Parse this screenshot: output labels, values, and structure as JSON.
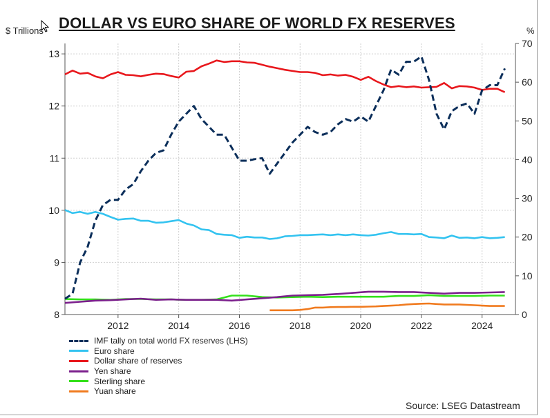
{
  "title": "DOLLAR VS EURO SHARE OF WORLD FX RESERVES",
  "source": "Source: LSEG Datastream",
  "colors": {
    "imf": "#0b2e5a",
    "euro": "#33c3f0",
    "dollar": "#e8171c",
    "yen": "#7b1f8c",
    "sterling": "#33e01a",
    "yuan": "#f07a1e",
    "grid": "#cfcfcf"
  },
  "chart_data": {
    "type": "line",
    "title": "DOLLAR VS EURO SHARE OF WORLD FX RESERVES",
    "x_ticks": [
      2012,
      2014,
      2016,
      2018,
      2020,
      2022,
      2024
    ],
    "xlim": [
      2010.25,
      2025.1
    ],
    "left_axis": {
      "unit": "$ Trillions",
      "ylim": [
        8,
        13.2
      ],
      "ticks": [
        8,
        9,
        10,
        11,
        12,
        13
      ]
    },
    "right_axis": {
      "unit": "%",
      "ylim": [
        0,
        70
      ],
      "ticks": [
        0,
        10,
        20,
        30,
        40,
        50,
        60,
        70
      ]
    },
    "grid": true,
    "legend_position": "bottom-left",
    "series": [
      {
        "key": "imf",
        "name": "IMF tally on total world FX reserves (LHS)",
        "axis": "left",
        "style": "dashed",
        "x": [
          2010.25,
          2010.5,
          2010.75,
          2011.0,
          2011.25,
          2011.5,
          2011.75,
          2012.0,
          2012.25,
          2012.5,
          2012.75,
          2013.0,
          2013.25,
          2013.5,
          2013.75,
          2014.0,
          2014.25,
          2014.5,
          2014.75,
          2015.0,
          2015.25,
          2015.5,
          2015.75,
          2016.0,
          2016.25,
          2016.5,
          2016.75,
          2017.0,
          2017.25,
          2017.5,
          2017.75,
          2018.0,
          2018.25,
          2018.5,
          2018.75,
          2019.0,
          2019.25,
          2019.5,
          2019.75,
          2020.0,
          2020.25,
          2020.5,
          2020.75,
          2021.0,
          2021.25,
          2021.5,
          2021.75,
          2022.0,
          2022.25,
          2022.5,
          2022.75,
          2023.0,
          2023.25,
          2023.5,
          2023.75,
          2024.0,
          2024.25,
          2024.5,
          2024.75
        ],
        "y": [
          8.3,
          8.4,
          9.0,
          9.3,
          9.8,
          10.1,
          10.2,
          10.2,
          10.4,
          10.5,
          10.75,
          10.95,
          11.1,
          11.15,
          11.45,
          11.7,
          11.85,
          12.0,
          11.75,
          11.6,
          11.45,
          11.45,
          11.2,
          10.95,
          10.95,
          10.98,
          11.0,
          10.7,
          10.9,
          11.1,
          11.3,
          11.45,
          11.6,
          11.5,
          11.45,
          11.5,
          11.65,
          11.75,
          11.7,
          11.8,
          11.7,
          12.0,
          12.3,
          12.7,
          12.6,
          12.85,
          12.85,
          12.95,
          12.5,
          11.85,
          11.55,
          11.9,
          12.0,
          12.05,
          11.85,
          12.3,
          12.4,
          12.4,
          12.72
        ]
      },
      {
        "key": "euro",
        "name": "Euro share",
        "axis": "right",
        "style": "solid",
        "x": [
          2010.25,
          2010.5,
          2010.75,
          2011.0,
          2011.25,
          2011.5,
          2011.75,
          2012.0,
          2012.25,
          2012.5,
          2012.75,
          2013.0,
          2013.25,
          2013.5,
          2013.75,
          2014.0,
          2014.25,
          2014.5,
          2014.75,
          2015.0,
          2015.25,
          2015.5,
          2015.75,
          2016.0,
          2016.25,
          2016.5,
          2016.75,
          2017.0,
          2017.25,
          2017.5,
          2017.75,
          2018.0,
          2018.25,
          2018.5,
          2018.75,
          2019.0,
          2019.25,
          2019.5,
          2019.75,
          2020.0,
          2020.25,
          2020.5,
          2020.75,
          2021.0,
          2021.25,
          2021.5,
          2021.75,
          2022.0,
          2022.25,
          2022.5,
          2022.75,
          2023.0,
          2023.25,
          2023.5,
          2023.75,
          2024.0,
          2024.25,
          2024.5,
          2024.75
        ],
        "y": [
          27.0,
          26.2,
          26.5,
          26.0,
          26.5,
          26.0,
          25.2,
          24.5,
          24.7,
          24.8,
          24.2,
          24.2,
          23.7,
          23.8,
          24.1,
          24.4,
          23.5,
          23.0,
          22.0,
          21.8,
          20.8,
          20.6,
          20.5,
          19.8,
          20.1,
          19.9,
          19.9,
          19.5,
          19.7,
          20.2,
          20.3,
          20.5,
          20.5,
          20.6,
          20.7,
          20.5,
          20.7,
          20.5,
          20.7,
          20.5,
          20.4,
          20.6,
          21.0,
          21.3,
          20.8,
          20.8,
          20.7,
          20.8,
          20.0,
          19.9,
          19.7,
          20.4,
          19.8,
          19.9,
          19.7,
          20.0,
          19.7,
          19.8,
          20.0
        ]
      },
      {
        "key": "dollar",
        "name": "Dollar share of reserves",
        "axis": "right",
        "style": "solid",
        "x": [
          2010.25,
          2010.5,
          2010.75,
          2011.0,
          2011.25,
          2011.5,
          2011.75,
          2012.0,
          2012.25,
          2012.5,
          2012.75,
          2013.0,
          2013.25,
          2013.5,
          2013.75,
          2014.0,
          2014.25,
          2014.5,
          2014.75,
          2015.0,
          2015.25,
          2015.5,
          2015.75,
          2016.0,
          2016.25,
          2016.5,
          2016.75,
          2017.0,
          2017.25,
          2017.5,
          2017.75,
          2018.0,
          2018.25,
          2018.5,
          2018.75,
          2019.0,
          2019.25,
          2019.5,
          2019.75,
          2020.0,
          2020.25,
          2020.5,
          2020.75,
          2021.0,
          2021.25,
          2021.5,
          2021.75,
          2022.0,
          2022.25,
          2022.5,
          2022.75,
          2023.0,
          2023.25,
          2023.5,
          2023.75,
          2024.0,
          2024.25,
          2024.5,
          2024.75
        ],
        "y": [
          62.0,
          63.0,
          62.2,
          62.4,
          61.5,
          61.0,
          62.0,
          62.6,
          61.9,
          61.8,
          61.5,
          61.9,
          62.2,
          62.1,
          61.6,
          61.2,
          62.7,
          62.9,
          64.1,
          64.8,
          65.6,
          65.2,
          65.4,
          65.4,
          65.1,
          65.0,
          64.5,
          64.0,
          63.6,
          63.2,
          62.9,
          62.6,
          62.6,
          62.4,
          61.8,
          62.0,
          61.7,
          61.9,
          61.4,
          60.6,
          61.4,
          60.3,
          59.4,
          58.7,
          59.0,
          58.7,
          58.9,
          58.6,
          58.7,
          58.8,
          59.8,
          58.4,
          59.0,
          58.9,
          58.6,
          58.0,
          58.3,
          58.3,
          57.4
        ]
      },
      {
        "key": "yen",
        "name": "Yen share",
        "axis": "right",
        "style": "solid",
        "x": [
          2010.25,
          2010.75,
          2011.25,
          2011.75,
          2012.25,
          2012.75,
          2013.25,
          2013.75,
          2014.25,
          2014.75,
          2015.25,
          2015.75,
          2016.25,
          2016.75,
          2017.25,
          2017.75,
          2018.25,
          2018.75,
          2019.25,
          2019.75,
          2020.25,
          2020.75,
          2021.25,
          2021.75,
          2022.25,
          2022.75,
          2023.25,
          2023.75,
          2024.25,
          2024.75
        ],
        "y": [
          3.0,
          3.3,
          3.6,
          3.7,
          3.9,
          4.1,
          3.8,
          3.9,
          3.8,
          3.8,
          3.8,
          3.6,
          3.9,
          4.2,
          4.5,
          4.9,
          5.0,
          5.1,
          5.3,
          5.6,
          5.9,
          5.9,
          5.8,
          5.8,
          5.6,
          5.4,
          5.6,
          5.6,
          5.7,
          5.8
        ]
      },
      {
        "key": "sterling",
        "name": "Sterling share",
        "axis": "right",
        "style": "solid",
        "x": [
          2010.25,
          2010.75,
          2011.25,
          2011.75,
          2012.25,
          2012.75,
          2013.25,
          2013.75,
          2014.25,
          2014.75,
          2015.25,
          2015.75,
          2016.25,
          2016.75,
          2017.25,
          2017.75,
          2018.25,
          2018.75,
          2019.25,
          2019.75,
          2020.25,
          2020.75,
          2021.25,
          2021.75,
          2022.25,
          2022.75,
          2023.25,
          2023.75,
          2024.25,
          2024.75
        ],
        "y": [
          4.0,
          3.9,
          3.9,
          3.8,
          4.0,
          4.0,
          3.9,
          3.9,
          3.8,
          3.8,
          3.9,
          4.9,
          4.9,
          4.5,
          4.4,
          4.5,
          4.6,
          4.5,
          4.6,
          4.6,
          4.6,
          4.6,
          4.8,
          4.8,
          5.0,
          4.8,
          4.8,
          4.8,
          4.9,
          4.9
        ]
      },
      {
        "key": "yuan",
        "name": "Yuan share",
        "axis": "right",
        "style": "solid",
        "x": [
          2017.0,
          2017.25,
          2017.5,
          2017.75,
          2018.0,
          2018.25,
          2018.5,
          2018.75,
          2019.0,
          2019.25,
          2019.5,
          2019.75,
          2020.0,
          2020.25,
          2020.5,
          2020.75,
          2021.0,
          2021.25,
          2021.5,
          2021.75,
          2022.0,
          2022.25,
          2022.5,
          2022.75,
          2023.0,
          2023.25,
          2023.5,
          2023.75,
          2024.0,
          2024.25,
          2024.5,
          2024.75
        ],
        "y": [
          1.1,
          1.1,
          1.1,
          1.1,
          1.2,
          1.4,
          1.8,
          1.8,
          1.9,
          1.95,
          1.95,
          2.0,
          2.0,
          2.05,
          2.1,
          2.2,
          2.3,
          2.4,
          2.6,
          2.7,
          2.8,
          2.85,
          2.7,
          2.6,
          2.6,
          2.6,
          2.5,
          2.4,
          2.3,
          2.2,
          2.2,
          2.2
        ]
      }
    ]
  }
}
